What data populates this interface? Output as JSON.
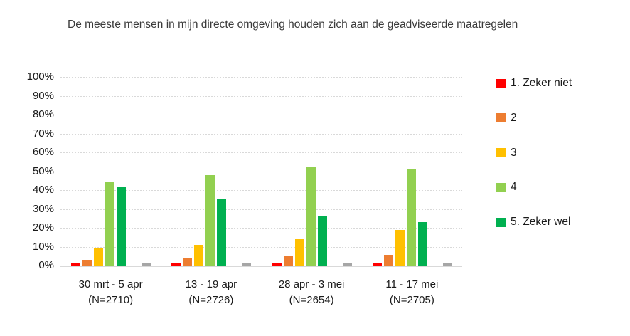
{
  "title": "De meeste mensen in mijn directe omgeving houden zich aan de geadviseerde maatregelen",
  "colors": {
    "red": "#FF0000",
    "orange": "#ED7D31",
    "yellow": "#FFC000",
    "light_green": "#92D050",
    "dark_green": "#00B050",
    "gray": "#A6A6A6",
    "gridline": "#D9D9D9",
    "title_text": "#3B3B3B",
    "axis_text": "#1A1A1A"
  },
  "y_axis": {
    "ticks": [
      "100%",
      "90%",
      "80%",
      "70%",
      "60%",
      "50%",
      "40%",
      "30%",
      "20%",
      "10%",
      "0%"
    ]
  },
  "legend": [
    {
      "label": "1. Zeker niet",
      "color": "#FF0000"
    },
    {
      "label": "2",
      "color": "#ED7D31"
    },
    {
      "label": "3",
      "color": "#FFC000"
    },
    {
      "label": "4",
      "color": "#92D050"
    },
    {
      "label": "5. Zeker wel",
      "color": "#00B050"
    }
  ],
  "chart_data": {
    "type": "bar",
    "title": "De meeste mensen in mijn directe omgeving houden zich aan de geadviseerde maatregelen",
    "categories": [
      {
        "line1": "30 mrt - 5 apr",
        "line2": "(N=2710)"
      },
      {
        "line1": "13 - 19 apr",
        "line2": "(N=2726)"
      },
      {
        "line1": "28 apr - 3 mei",
        "line2": "(N=2654)"
      },
      {
        "line1": "11 - 17 mei",
        "line2": "(N=2705)"
      }
    ],
    "series": [
      {
        "name": "1. Zeker niet",
        "color": "#FF0000",
        "values": [
          1,
          1,
          1,
          1.5
        ]
      },
      {
        "name": "2",
        "color": "#ED7D31",
        "values": [
          3,
          4,
          5,
          5.5
        ]
      },
      {
        "name": "3",
        "color": "#FFC000",
        "values": [
          9,
          11,
          14,
          19
        ]
      },
      {
        "name": "4",
        "color": "#92D050",
        "values": [
          44,
          48,
          52.5,
          51
        ]
      },
      {
        "name": "5. Zeker wel",
        "color": "#00B050",
        "values": [
          42,
          35,
          26.5,
          23
        ]
      },
      {
        "name": "",
        "color": "#A6A6A6",
        "values": [
          1,
          1,
          1,
          1.5
        ]
      }
    ],
    "ylim": [
      0,
      100
    ],
    "ytick_step": 10,
    "ytick_format": "percent",
    "grid": true,
    "legend_position": "right"
  }
}
